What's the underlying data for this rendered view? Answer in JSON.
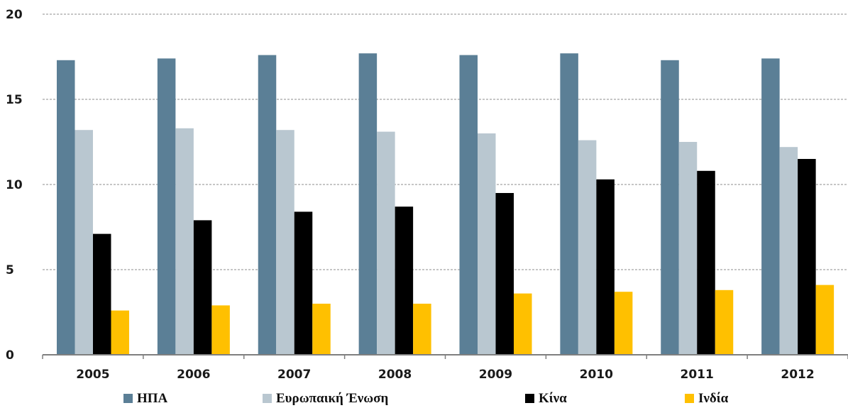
{
  "chart_data": {
    "type": "bar",
    "categories": [
      "2005",
      "2006",
      "2007",
      "2008",
      "2009",
      "2010",
      "2011",
      "2012"
    ],
    "series": [
      {
        "name": "ΗΠΑ",
        "color": "#5b7f96",
        "values": [
          17.3,
          17.4,
          17.6,
          17.7,
          17.6,
          17.7,
          17.3,
          17.4
        ]
      },
      {
        "name": "Ευρωπαική Ένωση",
        "color": "#b9c7d0",
        "values": [
          13.2,
          13.3,
          13.2,
          13.1,
          13.0,
          12.6,
          12.5,
          12.2
        ]
      },
      {
        "name": "Κίνα",
        "color": "#000000",
        "values": [
          7.1,
          7.9,
          8.4,
          8.7,
          9.5,
          10.3,
          10.8,
          11.5
        ]
      },
      {
        "name": "Ινδία",
        "color": "#ffc000",
        "values": [
          2.6,
          2.9,
          3.0,
          3.0,
          3.6,
          3.7,
          3.8,
          4.1
        ]
      }
    ],
    "yticks": [
      "0",
      "5",
      "10",
      "15",
      "20"
    ],
    "ylim": [
      0,
      20
    ],
    "grid": true,
    "legend_position": "bottom",
    "title": "",
    "xlabel": "",
    "ylabel": ""
  }
}
